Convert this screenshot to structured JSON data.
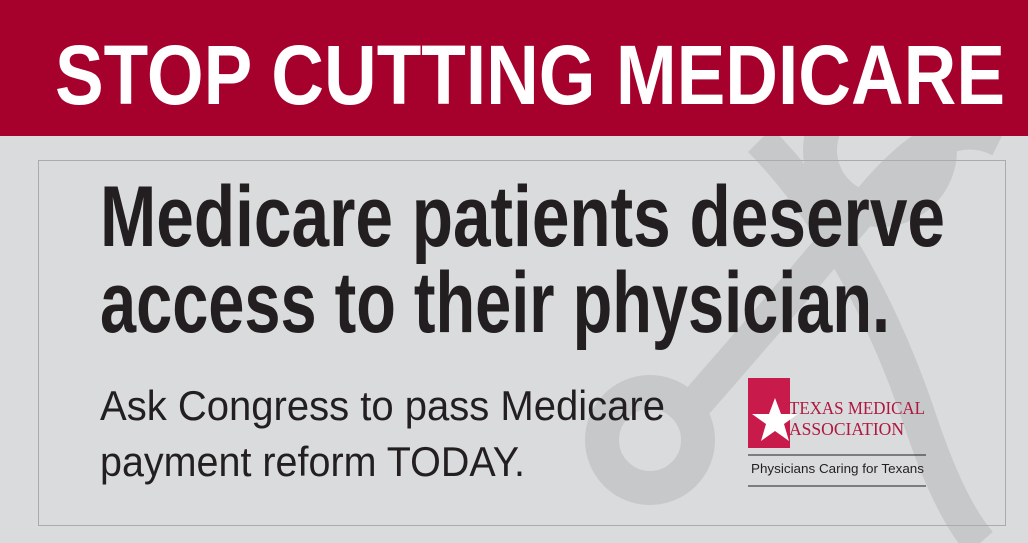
{
  "header": {
    "title": "STOP CUTTING MEDICARE"
  },
  "headline": {
    "lines": [
      "Medicare patients deserve",
      "access to their physician."
    ]
  },
  "subtext": {
    "lines": [
      "Ask Congress to pass Medicare",
      "payment reform TODAY."
    ]
  },
  "logo": {
    "name": [
      "TEXAS MEDICAL",
      "ASSOCIATION"
    ],
    "tagline": "Physicians Caring for Texans"
  }
}
